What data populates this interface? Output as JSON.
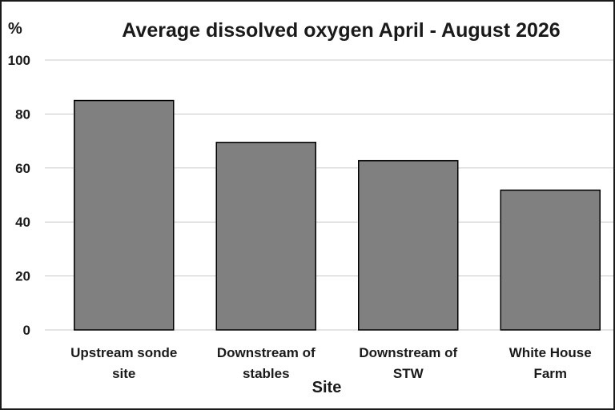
{
  "chart_data": {
    "type": "bar",
    "title": "Average dissolved oxygen April - August  2026",
    "ylabel": "%",
    "xlabel": "Site",
    "ylim": [
      0,
      100
    ],
    "yticks": [
      0,
      20,
      40,
      60,
      80,
      100
    ],
    "grid": true,
    "categories": [
      [
        "Upstream sonde",
        "site"
      ],
      [
        "Downstream of",
        "stables"
      ],
      [
        "Downstream of",
        "STW"
      ],
      [
        "White House",
        "Farm"
      ]
    ],
    "values": [
      85,
      69.5,
      62.7,
      51.8
    ],
    "colors": {
      "bar": "#808080",
      "bar_edge": "#000000",
      "grid": "#c8c8c8",
      "text": "#1a1a1a"
    }
  }
}
